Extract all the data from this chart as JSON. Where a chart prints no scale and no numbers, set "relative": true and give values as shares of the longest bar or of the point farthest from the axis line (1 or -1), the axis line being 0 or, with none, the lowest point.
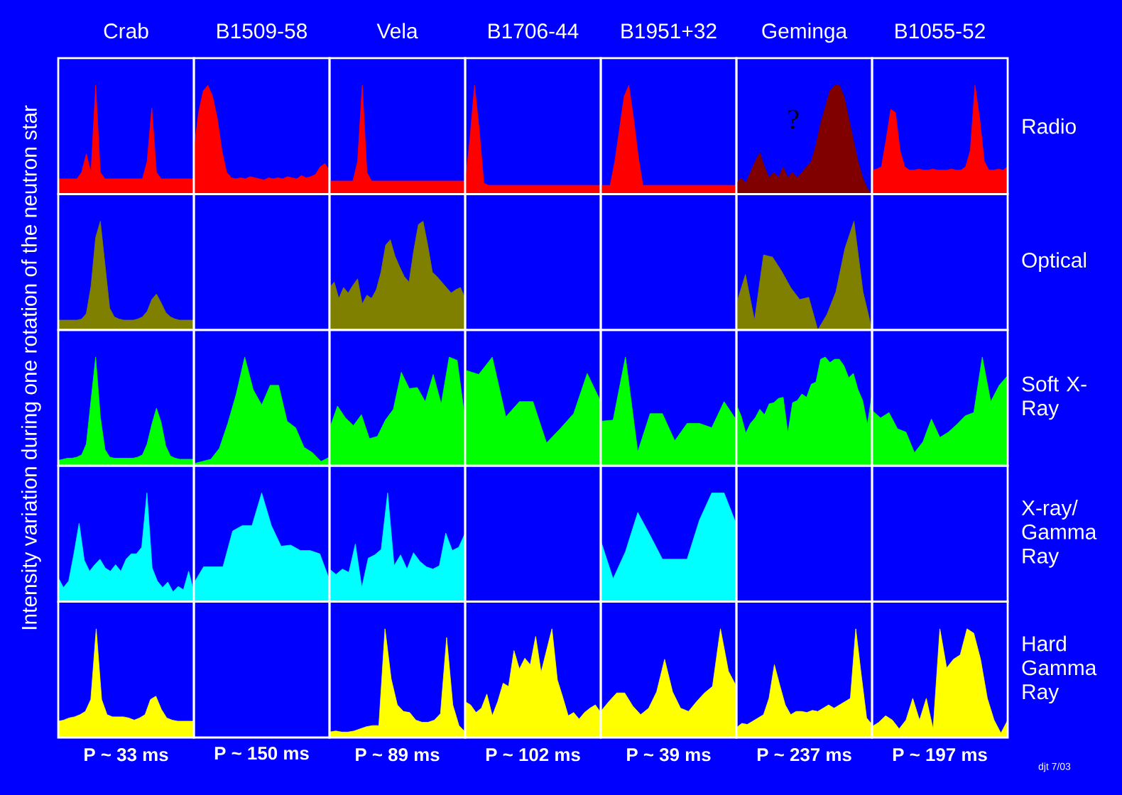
{
  "chart_data": [
    {
      "type": "area",
      "title": "Crab",
      "relative": true,
      "color": "#ff0000",
      "categories": [
        null,
        null,
        null,
        null,
        null,
        null,
        null,
        null,
        null,
        null,
        null,
        null,
        null,
        null,
        null,
        null,
        null,
        null,
        null,
        null,
        null,
        null,
        null,
        null,
        null,
        null,
        null,
        null,
        null,
        null
      ],
      "values": [
        0.14,
        0.14,
        0.14,
        0.14,
        0.14,
        0.2,
        0.37,
        0.2,
        1.0,
        0.2,
        0.14,
        0.14,
        0.14,
        0.14,
        0.14,
        0.14,
        0.14,
        0.14,
        0.14,
        0.3,
        0.79,
        0.2,
        0.14,
        0.14,
        0.14,
        0.14,
        0.14,
        0.14,
        0.14,
        0.14
      ]
    },
    {
      "type": "area",
      "title": "B1509-58",
      "relative": true,
      "color": "#ff0000",
      "categories": [
        null,
        null,
        null,
        null,
        null,
        null,
        null,
        null,
        null,
        null,
        null,
        null,
        null,
        null,
        null,
        null,
        null,
        null,
        null,
        null,
        null,
        null,
        null,
        null,
        null,
        null,
        null,
        null,
        null,
        null
      ],
      "values": [
        0.4,
        0.75,
        0.95,
        1.0,
        0.9,
        0.7,
        0.4,
        0.2,
        0.15,
        0.14,
        0.15,
        0.14,
        0.16,
        0.15,
        0.14,
        0.13,
        0.15,
        0.14,
        0.15,
        0.14,
        0.16,
        0.15,
        0.14,
        0.17,
        0.15,
        0.16,
        0.18,
        0.25,
        0.28,
        0.22
      ]
    },
    {
      "type": "area",
      "title": "Vela",
      "relative": true,
      "color": "#ff0000",
      "categories": [
        null,
        null,
        null,
        null,
        null,
        null,
        null,
        null,
        null,
        null,
        null,
        null,
        null,
        null,
        null,
        null,
        null,
        null,
        null,
        null,
        null,
        null,
        null,
        null,
        null,
        null,
        null,
        null,
        null,
        null
      ],
      "values": [
        0.12,
        0.12,
        0.12,
        0.12,
        0.12,
        0.12,
        0.3,
        1.0,
        0.2,
        0.12,
        0.12,
        0.12,
        0.12,
        0.12,
        0.12,
        0.12,
        0.12,
        0.12,
        0.12,
        0.12,
        0.12,
        0.12,
        0.12,
        0.12,
        0.12,
        0.12,
        0.12,
        0.12,
        0.12,
        0.12
      ]
    },
    {
      "type": "area",
      "title": "B1706-44",
      "relative": true,
      "color": "#ff0000",
      "categories": [
        null,
        null,
        null,
        null,
        null,
        null,
        null,
        null,
        null,
        null,
        null,
        null,
        null,
        null,
        null,
        null,
        null,
        null,
        null,
        null,
        null,
        null,
        null,
        null,
        null,
        null,
        null,
        null,
        null,
        null
      ],
      "values": [
        0.1,
        0.5,
        1.0,
        0.6,
        0.1,
        0.08,
        0.08,
        0.08,
        0.08,
        0.08,
        0.08,
        0.08,
        0.08,
        0.08,
        0.08,
        0.08,
        0.08,
        0.08,
        0.08,
        0.08,
        0.08,
        0.08,
        0.08,
        0.08,
        0.08,
        0.08,
        0.08,
        0.08,
        0.08,
        0.08
      ]
    },
    {
      "type": "area",
      "title": "B1951+32",
      "relative": true,
      "color": "#ff0000",
      "categories": [
        null,
        null,
        null,
        null,
        null,
        null,
        null,
        null,
        null,
        null,
        null,
        null,
        null,
        null,
        null,
        null,
        null,
        null,
        null,
        null,
        null,
        null,
        null,
        null,
        null,
        null,
        null,
        null,
        null,
        null
      ],
      "values": [
        0.08,
        0.08,
        0.08,
        0.3,
        0.6,
        0.9,
        1.0,
        0.7,
        0.35,
        0.08,
        0.08,
        0.08,
        0.08,
        0.08,
        0.08,
        0.08,
        0.08,
        0.08,
        0.08,
        0.08,
        0.08,
        0.08,
        0.08,
        0.08,
        0.08,
        0.08,
        0.08,
        0.08,
        0.08,
        0.08
      ]
    },
    {
      "type": "area",
      "title": "Geminga",
      "relative": true,
      "color": "#800000",
      "annotations": [
        "?"
      ],
      "categories": [
        null,
        null,
        null,
        null,
        null,
        null,
        null,
        null,
        null,
        null,
        null,
        null,
        null,
        null,
        null,
        null,
        null,
        null,
        null,
        null,
        null,
        null,
        null,
        null,
        null,
        null,
        null,
        null,
        null,
        null
      ],
      "values": [
        0.1,
        0.15,
        0.1,
        0.2,
        0.3,
        0.38,
        0.25,
        0.15,
        0.2,
        0.15,
        0.25,
        0.15,
        0.2,
        0.15,
        0.2,
        0.25,
        0.3,
        0.45,
        0.65,
        0.8,
        0.95,
        1.0,
        1.0,
        0.9,
        0.7,
        0.5,
        0.3,
        0.15,
        0.05,
        0.0
      ]
    },
    {
      "type": "area",
      "title": "B1055-52",
      "y2label": "Radio",
      "relative": true,
      "color": "#ff0000",
      "categories": [
        null,
        null,
        null,
        null,
        null,
        null,
        null,
        null,
        null,
        null,
        null,
        null,
        null,
        null,
        null,
        null,
        null,
        null,
        null,
        null,
        null,
        null,
        null,
        null,
        null,
        null,
        null,
        null,
        null,
        null
      ],
      "values": [
        0.22,
        0.23,
        0.25,
        0.5,
        0.78,
        0.75,
        0.4,
        0.25,
        0.22,
        0.22,
        0.23,
        0.22,
        0.22,
        0.23,
        0.22,
        0.22,
        0.22,
        0.23,
        0.22,
        0.22,
        0.25,
        0.4,
        1.0,
        0.7,
        0.3,
        0.22,
        0.22,
        0.23,
        0.22,
        0.25
      ]
    },
    {
      "type": "area",
      "relative": true,
      "color": "#808000",
      "categories": [
        null,
        null,
        null,
        null,
        null,
        null,
        null,
        null,
        null,
        null,
        null,
        null,
        null,
        null,
        null,
        null,
        null,
        null,
        null,
        null,
        null,
        null,
        null,
        null,
        null,
        null,
        null,
        null,
        null,
        null
      ],
      "values": [
        0.09,
        0.09,
        0.09,
        0.09,
        0.09,
        0.1,
        0.15,
        0.4,
        0.85,
        1.0,
        0.6,
        0.2,
        0.12,
        0.1,
        0.09,
        0.09,
        0.09,
        0.1,
        0.12,
        0.17,
        0.28,
        0.33,
        0.25,
        0.16,
        0.12,
        0.1,
        0.09,
        0.09,
        0.09,
        0.09
      ]
    },
    {
      "type": "other"
    },
    {
      "type": "area",
      "relative": true,
      "color": "#808000",
      "categories": [
        null,
        null,
        null,
        null,
        null,
        null,
        null,
        null,
        null,
        null,
        null,
        null,
        null,
        null,
        null,
        null,
        null,
        null,
        null,
        null,
        null,
        null,
        null,
        null,
        null,
        null,
        null,
        null,
        null,
        null
      ],
      "values": [
        0.39,
        0.44,
        0.29,
        0.39,
        0.34,
        0.41,
        0.47,
        0.24,
        0.32,
        0.29,
        0.37,
        0.53,
        0.78,
        0.83,
        0.68,
        0.58,
        0.49,
        0.44,
        0.73,
        0.97,
        1.0,
        0.78,
        0.53,
        0.49,
        0.44,
        0.39,
        0.34,
        0.37,
        0.39,
        0.29
      ]
    },
    {
      "type": "other"
    },
    {
      "type": "other"
    },
    {
      "type": "area",
      "relative": true,
      "color": "#808000",
      "categories": [
        null,
        null,
        null,
        null,
        null,
        null,
        null,
        null,
        null,
        null,
        null,
        null,
        null,
        null,
        null,
        null
      ],
      "values": [
        0.24,
        0.51,
        0.09,
        0.69,
        0.67,
        0.54,
        0.39,
        0.28,
        0.3,
        0,
        0.14,
        0.35,
        0.75,
        1.0,
        0.35,
        0
      ]
    },
    {
      "type": "other",
      "y2label": "Optical"
    },
    {
      "type": "area",
      "ylabel": "Intensity variation during one rotation of the neutron star",
      "relative": true,
      "color": "#00ff00",
      "categories": [
        null,
        null,
        null,
        null,
        null,
        null,
        null,
        null,
        null,
        null,
        null,
        null,
        null,
        null,
        null,
        null,
        null,
        null,
        null,
        null,
        null,
        null,
        null,
        null,
        null,
        null,
        null,
        null,
        null,
        null
      ],
      "values": [
        0.05,
        0.06,
        0.07,
        0.07,
        0.08,
        0.1,
        0.2,
        0.6,
        1.0,
        0.45,
        0.15,
        0.08,
        0.07,
        0.07,
        0.07,
        0.07,
        0.07,
        0.08,
        0.1,
        0.2,
        0.38,
        0.53,
        0.4,
        0.18,
        0.09,
        0.07,
        0.06,
        0.06,
        0.06,
        0.06
      ]
    },
    {
      "type": "area",
      "relative": true,
      "color": "#00ff00",
      "categories": [
        null,
        null,
        null,
        null,
        null,
        null,
        null,
        null,
        null,
        null,
        null,
        null,
        null,
        null,
        null,
        null,
        null
      ],
      "values": [
        0.02,
        0.04,
        0.06,
        0.16,
        0.39,
        0.66,
        1.0,
        0.7,
        0.56,
        0.74,
        0.74,
        0.41,
        0.35,
        0.17,
        0.12,
        0.04,
        0.08
      ]
    },
    {
      "type": "area",
      "relative": true,
      "color": "#00ff00",
      "categories": [
        null,
        null,
        null,
        null,
        null,
        null,
        null,
        null,
        null,
        null,
        null,
        null,
        null,
        null,
        null,
        null,
        null,
        null
      ],
      "values": [
        0.34,
        0.55,
        0.44,
        0.37,
        0.47,
        0.25,
        0.27,
        0.42,
        0.52,
        0.86,
        0.71,
        0.72,
        0.59,
        0.84,
        0.57,
        1.0,
        0.97,
        0.42
      ]
    },
    {
      "type": "area",
      "relative": true,
      "color": "#00ff00",
      "categories": [
        null,
        null,
        null,
        null,
        null,
        null,
        null,
        null,
        null,
        null,
        null
      ],
      "values": [
        0.88,
        0.84,
        1.0,
        0.45,
        0.59,
        0.59,
        0.21,
        0.34,
        0.48,
        0.85,
        0.59
      ]
    },
    {
      "type": "area",
      "relative": true,
      "color": "#00ff00",
      "categories": [
        null,
        null,
        null,
        null,
        null,
        null,
        null,
        null,
        null,
        null,
        null,
        null
      ],
      "values": [
        0.41,
        0.42,
        1.0,
        0.13,
        0.48,
        0.48,
        0.23,
        0.39,
        0.39,
        0.35,
        0.59,
        0.42
      ]
    },
    {
      "type": "area",
      "relative": true,
      "color": "#00ff00",
      "categories": [
        null,
        null,
        null,
        null,
        null,
        null,
        null,
        null,
        null,
        null,
        null,
        null,
        null,
        null,
        null,
        null,
        null,
        null,
        null,
        null,
        null,
        null,
        null,
        null,
        null,
        null,
        null,
        null,
        null,
        null
      ],
      "values": [
        0.56,
        0.46,
        0.3,
        0.39,
        0.44,
        0.52,
        0.47,
        0.57,
        0.58,
        0.62,
        0.63,
        0.3,
        0.58,
        0.6,
        0.66,
        0.63,
        0.75,
        0.77,
        0.98,
        1.0,
        0.95,
        0.98,
        0.98,
        0.92,
        0.81,
        0.85,
        0.7,
        0.6,
        0.38,
        0.66
      ]
    },
    {
      "type": "area",
      "y2label": "Soft X-Ray",
      "relative": true,
      "color": "#00ff00",
      "categories": [
        null,
        null,
        null,
        null,
        null,
        null,
        null,
        null,
        null,
        null,
        null,
        null,
        null,
        null,
        null,
        null,
        null
      ],
      "values": [
        0.51,
        0.44,
        0.49,
        0.34,
        0.31,
        0.12,
        0.22,
        0.43,
        0.26,
        0.31,
        0.38,
        0.46,
        0.49,
        1.0,
        0.59,
        0.74,
        0.83
      ]
    },
    {
      "type": "area",
      "relative": true,
      "color": "#00ffff",
      "categories": [
        null,
        null,
        null,
        null,
        null,
        null,
        null,
        null,
        null,
        null,
        null,
        null,
        null,
        null,
        null,
        null,
        null,
        null,
        null,
        null,
        null,
        null,
        null,
        null,
        null,
        null,
        null
      ],
      "values": [
        0.22,
        0.13,
        0.19,
        0.44,
        0.72,
        0.38,
        0.28,
        0.34,
        0.39,
        0.31,
        0.28,
        0.34,
        0.28,
        0.39,
        0.44,
        0.44,
        0.5,
        1.0,
        0.31,
        0.19,
        0.13,
        0.18,
        0.09,
        0.14,
        0.11,
        0.28,
        0.09
      ]
    },
    {
      "type": "area",
      "relative": true,
      "color": "#00ffff",
      "categories": [
        null,
        null,
        null,
        null,
        null,
        null,
        null,
        null,
        null,
        null,
        null,
        null,
        null,
        null,
        null
      ],
      "values": [
        0.17,
        0.32,
        0.32,
        0.32,
        0.65,
        0.7,
        0.7,
        1.0,
        0.7,
        0.51,
        0.52,
        0.47,
        0.47,
        0.44,
        0.2
      ]
    },
    {
      "type": "area",
      "relative": true,
      "color": "#00ffff",
      "categories": [
        null,
        null,
        null,
        null,
        null,
        null,
        null,
        null,
        null,
        null,
        null,
        null,
        null,
        null,
        null,
        null,
        null,
        null,
        null,
        null,
        null,
        null
      ],
      "values": [
        0.3,
        0.25,
        0.3,
        0.27,
        0.53,
        0.13,
        0.4,
        0.43,
        0.48,
        1.0,
        0.33,
        0.43,
        0.3,
        0.45,
        0.37,
        0.32,
        0.3,
        0.33,
        0.63,
        0.47,
        0.5,
        0.63
      ]
    },
    {
      "type": "other"
    },
    {
      "type": "area",
      "relative": true,
      "color": "#00ffff",
      "categories": [
        null,
        null,
        null,
        null,
        null,
        null,
        null,
        null,
        null,
        null,
        null,
        null
      ],
      "values": [
        0.56,
        0.21,
        0.46,
        0.82,
        0.61,
        0.39,
        0.39,
        0.39,
        0.75,
        1.0,
        1.0,
        0.71
      ]
    },
    {
      "type": "other"
    },
    {
      "type": "other",
      "y2label": "X-ray/ Gamma Ray"
    },
    {
      "type": "area",
      "xlabel": "P ~ 33 ms",
      "relative": true,
      "color": "#ffff00",
      "categories": [
        null,
        null,
        null,
        null,
        null,
        null,
        null,
        null,
        null,
        null,
        null,
        null,
        null,
        null,
        null,
        null,
        null,
        null,
        null,
        null,
        null,
        null,
        null,
        null,
        null,
        null
      ],
      "values": [
        0.15,
        0.16,
        0.18,
        0.19,
        0.21,
        0.24,
        0.35,
        1.0,
        0.35,
        0.21,
        0.19,
        0.19,
        0.19,
        0.18,
        0.16,
        0.18,
        0.21,
        0.35,
        0.38,
        0.26,
        0.18,
        0.16,
        0.15,
        0.15,
        0.15,
        0.15
      ]
    },
    {
      "type": "other",
      "xlabel": "P ~ 150 ms"
    },
    {
      "type": "area",
      "xlabel": "P ~ 89 ms",
      "relative": true,
      "color": "#ffff00",
      "categories": [
        null,
        null,
        null,
        null,
        null,
        null,
        null,
        null,
        null,
        null,
        null,
        null,
        null,
        null,
        null,
        null,
        null,
        null,
        null,
        null,
        null,
        null,
        null
      ],
      "values": [
        0.05,
        0.06,
        0.05,
        0.05,
        0.06,
        0.08,
        0.1,
        0.11,
        0.11,
        1.0,
        0.54,
        0.3,
        0.24,
        0.23,
        0.16,
        0.14,
        0.14,
        0.16,
        0.22,
        0.92,
        0.3,
        0.11,
        0.05
      ]
    },
    {
      "type": "area",
      "xlabel": "P ~ 102 ms",
      "relative": true,
      "color": "#ffff00",
      "categories": [
        null,
        null,
        null,
        null,
        null,
        null,
        null,
        null,
        null,
        null,
        null,
        null,
        null,
        null,
        null,
        null,
        null,
        null,
        null,
        null,
        null,
        null,
        null,
        null,
        null,
        null
      ],
      "values": [
        0.33,
        0.3,
        0.23,
        0.27,
        0.4,
        0.2,
        0.33,
        0.5,
        0.47,
        0.8,
        0.63,
        0.73,
        0.67,
        0.93,
        0.6,
        0.8,
        1.0,
        0.53,
        0.37,
        0.2,
        0.23,
        0.17,
        0.23,
        0.27,
        0.3,
        0.23
      ]
    },
    {
      "type": "area",
      "xlabel": "P ~ 39 ms",
      "relative": true,
      "color": "#ffff00",
      "categories": [
        null,
        null,
        null,
        null,
        null,
        null,
        null,
        null,
        null,
        null,
        null,
        null,
        null,
        null,
        null,
        null,
        null,
        null
      ],
      "values": [
        0.24,
        0.33,
        0.41,
        0.41,
        0.29,
        0.21,
        0.27,
        0.42,
        0.72,
        0.42,
        0.27,
        0.24,
        0.33,
        0.41,
        0.47,
        1.0,
        0.61,
        0.47
      ]
    },
    {
      "type": "area",
      "xlabel": "P ~ 237 ms",
      "relative": true,
      "color": "#ffff00",
      "categories": [
        null,
        null,
        null,
        null,
        null,
        null,
        null,
        null,
        null,
        null,
        null,
        null,
        null,
        null,
        null,
        null,
        null,
        null,
        null,
        null,
        null,
        null,
        null,
        null,
        null,
        null
      ],
      "values": [
        0.09,
        0.13,
        0.12,
        0.15,
        0.18,
        0.21,
        0.36,
        0.67,
        0.48,
        0.3,
        0.21,
        0.24,
        0.24,
        0.23,
        0.25,
        0.24,
        0.27,
        0.3,
        0.27,
        0.3,
        0.33,
        0.36,
        1.0,
        0.58,
        0.18,
        0.12
      ]
    },
    {
      "type": "area",
      "xlabel": "P ~ 197 ms",
      "y2label": "Hard Gamma Ray",
      "annotations": [
        "djt 7/03"
      ],
      "relative": true,
      "color": "#ffff00",
      "categories": [
        null,
        null,
        null,
        null,
        null,
        null,
        null,
        null,
        null,
        null,
        null,
        null,
        null,
        null,
        null,
        null,
        null,
        null,
        null,
        null,
        null
      ],
      "values": [
        0.1,
        0.14,
        0.2,
        0.16,
        0.08,
        0.16,
        0.36,
        0.16,
        0.36,
        0.08,
        1.0,
        0.64,
        0.72,
        0.76,
        1.0,
        0.96,
        0.72,
        0.36,
        0.16,
        0.04,
        0.16
      ]
    }
  ]
}
